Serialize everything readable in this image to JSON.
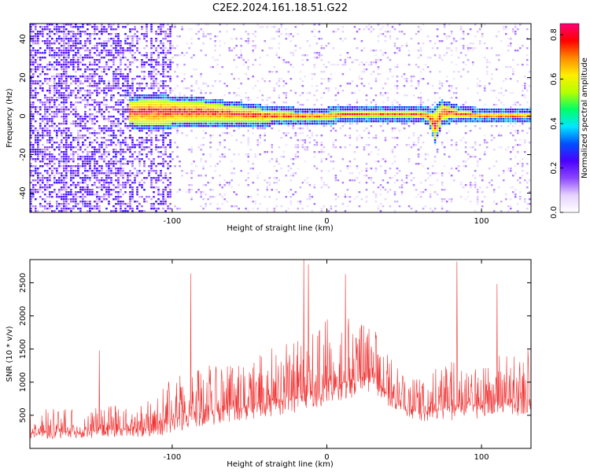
{
  "title": "C2E2.2024.161.18.51.G22",
  "colors": {
    "snr_line": "#f03232",
    "ridge_core": "#e8004a",
    "background": "#ffffff"
  },
  "chart_data": [
    {
      "type": "heatmap",
      "xlabel": "Height of straight line (km)",
      "ylabel": "Frequency (Hz)",
      "xlim": [
        -192,
        132
      ],
      "ylim": [
        -50,
        48
      ],
      "xticks": [
        -100,
        0,
        100
      ],
      "yticks": [
        -40,
        -20,
        0,
        20,
        40
      ],
      "colorbar": {
        "label": "Normalized spectral amplitude",
        "range": [
          0,
          0.85
        ],
        "ticks": [
          0.0,
          0.2,
          0.4,
          0.6,
          0.8
        ],
        "colormap": [
          "#ffffff",
          "#e6d2ff",
          "#8c46ff",
          "#4a00ff",
          "#0050ff",
          "#00e6ff",
          "#00ff66",
          "#b4ff00",
          "#ffee00",
          "#ff8a00",
          "#ff0000",
          "#ff0077"
        ]
      },
      "ridge": {
        "description_points_x": [
          -125,
          -110,
          -100,
          -80,
          -60,
          -40,
          -20,
          0,
          20,
          40,
          55,
          66,
          70,
          75,
          85,
          100,
          132
        ],
        "center_freq_hz": [
          2,
          2,
          2,
          2,
          1,
          0,
          0,
          0,
          1,
          1,
          1,
          0,
          -5,
          2,
          1,
          0,
          0
        ],
        "halfwidth_hz": [
          6,
          7,
          6,
          5,
          4,
          3,
          2,
          2,
          1.5,
          1.5,
          1.5,
          2,
          7,
          4,
          2,
          1.5,
          1.5
        ]
      }
    },
    {
      "type": "line",
      "xlabel": "Height of straight line (km)",
      "ylabel": "SNR (10 * v/v)",
      "xlim": [
        -192,
        132
      ],
      "ylim": [
        0,
        2850
      ],
      "xticks": [
        -100,
        0,
        100
      ],
      "yticks": [
        500,
        1000,
        1500,
        2000,
        2500
      ],
      "envelope": {
        "x": [
          -192,
          -160,
          -130,
          -110,
          -100,
          -80,
          -60,
          -40,
          -20,
          0,
          10,
          20,
          30,
          40,
          50,
          60,
          70,
          80,
          90,
          100,
          110,
          120,
          132
        ],
        "baseline": [
          250,
          250,
          300,
          300,
          450,
          550,
          600,
          700,
          800,
          950,
          1000,
          1050,
          1100,
          800,
          650,
          550,
          600,
          650,
          700,
          650,
          700,
          700,
          750
        ],
        "amplitude": [
          350,
          350,
          400,
          450,
          700,
          700,
          700,
          800,
          900,
          1000,
          1000,
          900,
          800,
          600,
          500,
          500,
          600,
          800,
          800,
          700,
          800,
          700,
          800
        ]
      },
      "peaks": [
        {
          "x": -147,
          "y": 1480
        },
        {
          "x": -88,
          "y": 2640
        },
        {
          "x": -15,
          "y": 2850
        },
        {
          "x": -12,
          "y": 2780
        },
        {
          "x": 12,
          "y": 2630
        },
        {
          "x": 84,
          "y": 2820
        },
        {
          "x": 110,
          "y": 2480
        }
      ]
    }
  ]
}
